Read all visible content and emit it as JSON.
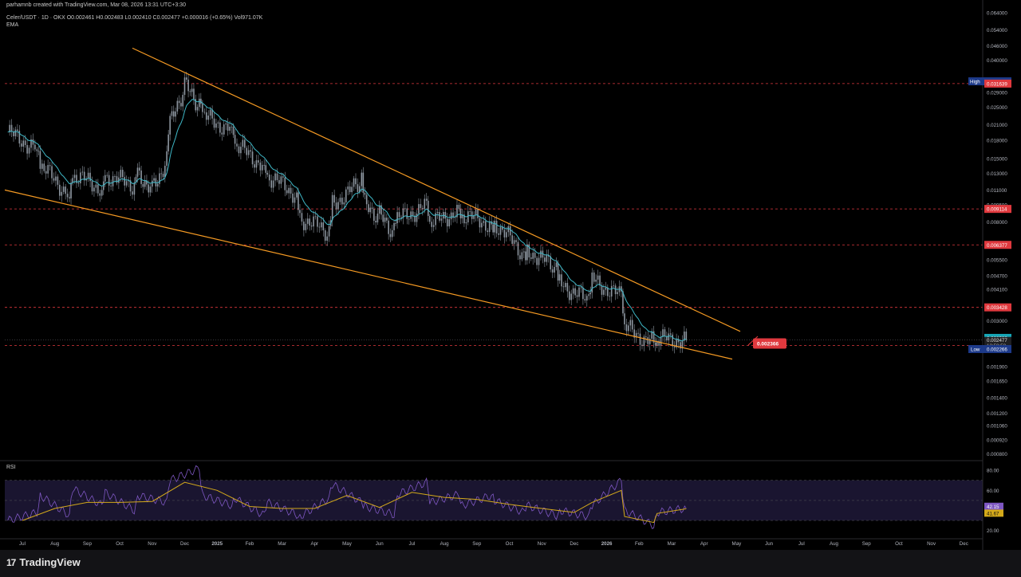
{
  "header": {
    "credit": "parhamnb created with TradingView.com, Mar 08, 2026 13:31 UTC+3:30",
    "symbol_line": "Celer/USDT · 1D · OKX  O0.002461  H0.002483  L0.002410  C0.002477  +0.000016 (+0.65%)  Vol971.07K",
    "indicator": "EMA",
    "rsi_label": "RSI"
  },
  "footer": {
    "brand": "TradingView",
    "brand_mark": "17"
  },
  "colors": {
    "background": "#000000",
    "trendline": "#f59a23",
    "level_line": "#e0393e",
    "ema": "#3fb8c7",
    "candle": "#8d96a0",
    "rsi": "#7e57c2",
    "rsi_ma": "#d4a91a",
    "high_badge": "#1d3a8a",
    "low_badge": "#1d3a8a",
    "price_badge": "#16a6b6",
    "rsi_band": "#1a1530"
  },
  "chart_data": [
    {
      "type": "candlestick",
      "title": "",
      "scale": "log",
      "x_ticks": [
        "Jul",
        "Aug",
        "Sep",
        "Oct",
        "Nov",
        "Dec",
        "2025",
        "Feb",
        "Mar",
        "Apr",
        "May",
        "Jun",
        "Jul",
        "Aug",
        "Sep",
        "Oct",
        "Nov",
        "Dec",
        "2026",
        "Feb",
        "Mar",
        "Apr",
        "May",
        "Jun",
        "Jul",
        "Aug",
        "Sep",
        "Oct",
        "Nov",
        "Dec"
      ],
      "y_ticks": [
        "0.064000",
        "0.054000",
        "0.046000",
        "0.040000",
        "0.029000",
        "0.025000",
        "0.021000",
        "0.018000",
        "0.015000",
        "0.013000",
        "0.011000",
        "0.009500",
        "0.008000",
        "0.005500",
        "0.004700",
        "0.004100",
        "0.003000",
        "0.001900",
        "0.001650",
        "0.001400",
        "0.001200",
        "0.001060",
        "0.000920",
        "0.000800"
      ],
      "ylim": [
        0.00076,
        0.066
      ],
      "series": [
        {
          "name": "Celer/USDT",
          "points": [
            [
              "Jul",
              0.0195
            ],
            [
              "Jul",
              0.0165
            ],
            [
              "Aug",
              0.014
            ],
            [
              "Aug",
              0.0105
            ],
            [
              "Sep",
              0.0128
            ],
            [
              "Sep",
              0.0112
            ],
            [
              "Oct",
              0.0127
            ],
            [
              "Oct",
              0.0115
            ],
            [
              "Nov",
              0.013
            ],
            [
              "Nov",
              0.0112
            ],
            [
              "Nov",
              0.0148
            ],
            [
              "Dec",
              0.021
            ],
            [
              "Dec",
              0.031
            ],
            [
              "Dec",
              0.0255
            ],
            [
              "2025",
              0.0228
            ],
            [
              "2025",
              0.02
            ],
            [
              "Feb",
              0.0172
            ],
            [
              "Feb",
              0.014
            ],
            [
              "Mar",
              0.0127
            ],
            [
              "Mar",
              0.0105
            ],
            [
              "Apr",
              0.0084
            ],
            [
              "Apr",
              0.0072
            ],
            [
              "May",
              0.0096
            ],
            [
              "May",
              0.0118
            ],
            [
              "Jun",
              0.0094
            ],
            [
              "Jun",
              0.0085
            ],
            [
              "Jun",
              0.0072
            ],
            [
              "Jul",
              0.0082
            ],
            [
              "Jul",
              0.0094
            ],
            [
              "Aug",
              0.0078
            ],
            [
              "Aug",
              0.009
            ],
            [
              "Sep",
              0.0086
            ],
            [
              "Sep",
              0.0078
            ],
            [
              "Oct",
              0.008
            ],
            [
              "Oct",
              0.0058
            ],
            [
              "Nov",
              0.0061
            ],
            [
              "Nov",
              0.005
            ],
            [
              "Dec",
              0.0044
            ],
            [
              "Dec",
              0.0036
            ],
            [
              "2026",
              0.0045
            ],
            [
              "2026",
              0.0038
            ],
            [
              "Feb",
              0.0028
            ],
            [
              "Feb",
              0.0024
            ],
            [
              "Mar",
              0.0025
            ],
            [
              "Mar",
              0.002477
            ]
          ]
        }
      ],
      "levels": [
        0.031639,
        0.009114,
        0.006377,
        0.003428,
        0.002345
      ],
      "price_labels": {
        "high_tag": "High",
        "high_value": "0.032360",
        "red_levels": [
          "0.031639",
          "0.009114",
          "0.006377",
          "0.003428",
          "0.002345"
        ],
        "current_ema": "0.002532",
        "current_price": "0.002477",
        "countdown": "13:58:58",
        "low_tag": "Low",
        "low_value": "0.002266",
        "callout": "0.002366"
      },
      "trendlines": [
        {
          "name": "upper",
          "from": [
            "Nov",
            0.045
          ],
          "to": [
            "May",
            0.0027
          ]
        },
        {
          "name": "lower",
          "from": [
            "Jul",
            0.011
          ],
          "to": [
            "May",
            0.00205
          ]
        }
      ]
    },
    {
      "type": "line",
      "title": "RSI",
      "y_ticks": [
        "80.00",
        "60.00",
        "20.00"
      ],
      "ylim": [
        15,
        88
      ],
      "band": [
        30,
        70
      ],
      "x_ticks": [
        "Jul",
        "Aug",
        "Sep",
        "Oct",
        "Nov",
        "Dec",
        "2025",
        "Feb",
        "Mar",
        "Apr",
        "May",
        "Jun",
        "Jul",
        "Aug",
        "Sep",
        "Oct",
        "Nov",
        "Dec",
        "2026",
        "Feb",
        "Mar",
        "Apr",
        "May",
        "Jun",
        "Jul",
        "Aug",
        "Sep",
        "Oct",
        "Nov",
        "Dec"
      ],
      "series": [
        {
          "name": "RSI",
          "points": [
            [
              "Jul",
              30
            ],
            [
              "Jul",
              38
            ],
            [
              "Aug",
              55
            ],
            [
              "Aug",
              35
            ],
            [
              "Sep",
              62
            ],
            [
              "Sep",
              45
            ],
            [
              "Oct",
              58
            ],
            [
              "Oct",
              40
            ],
            [
              "Nov",
              55
            ],
            [
              "Nov",
              48
            ],
            [
              "Dec",
              70
            ],
            [
              "Dec",
              82
            ],
            [
              "2025",
              55
            ],
            [
              "2025",
              45
            ],
            [
              "Feb",
              52
            ],
            [
              "Feb",
              35
            ],
            [
              "Mar",
              48
            ],
            [
              "Mar",
              36
            ],
            [
              "Apr",
              34
            ],
            [
              "Apr",
              52
            ],
            [
              "May",
              66
            ],
            [
              "May",
              48
            ],
            [
              "Jun",
              44
            ],
            [
              "Jun",
              36
            ],
            [
              "Jul",
              56
            ],
            [
              "Jul",
              68
            ],
            [
              "Aug",
              48
            ],
            [
              "Aug",
              56
            ],
            [
              "Sep",
              45
            ],
            [
              "Sep",
              55
            ],
            [
              "Oct",
              50
            ],
            [
              "Oct",
              38
            ],
            [
              "Nov",
              45
            ],
            [
              "Nov",
              35
            ],
            [
              "Dec",
              40
            ],
            [
              "Dec",
              34
            ],
            [
              "2026",
              45
            ],
            [
              "2026",
              70
            ],
            [
              "Feb",
              40
            ],
            [
              "Feb",
              25
            ],
            [
              "Mar",
              38
            ],
            [
              "Mar",
              42.15
            ]
          ],
          "last": "42.15"
        },
        {
          "name": "RSI MA",
          "points": [
            [
              "Jul",
              30
            ],
            [
              "Aug",
              42
            ],
            [
              "Sep",
              48
            ],
            [
              "Oct",
              48
            ],
            [
              "Nov",
              49
            ],
            [
              "Dec",
              68
            ],
            [
              "2025",
              60
            ],
            [
              "Feb",
              44
            ],
            [
              "Mar",
              42
            ],
            [
              "Apr",
              42
            ],
            [
              "May",
              55
            ],
            [
              "Jun",
              43
            ],
            [
              "Jul",
              58
            ],
            [
              "Aug",
              53
            ],
            [
              "Sep",
              51
            ],
            [
              "Oct",
              46
            ],
            [
              "Nov",
              42
            ],
            [
              "Dec",
              38
            ],
            [
              "2026",
              48
            ],
            [
              "2026",
              60
            ],
            [
              "Feb",
              34
            ],
            [
              "Feb",
              28
            ],
            [
              "Mar",
              37
            ],
            [
              "Mar",
              41.67
            ]
          ],
          "last": "41.67"
        }
      ]
    }
  ]
}
